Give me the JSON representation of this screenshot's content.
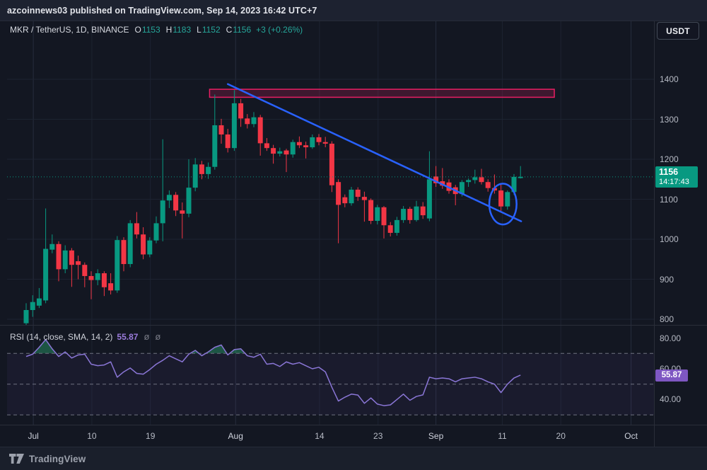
{
  "header": {
    "title": "azcoinnews03 published on TradingView.com, Sep 14, 2023 16:42 UTC+7"
  },
  "toolbar": {
    "currency_label": "USDT"
  },
  "symbol_legend": {
    "symbol": "MKR / TetherUS, 1D, BINANCE",
    "o_label": "O",
    "o": "1153",
    "h_label": "H",
    "h": "1183",
    "l_label": "L",
    "l": "1152",
    "c_label": "C",
    "c": "1156",
    "change": "+3 (+0.26%)"
  },
  "rsi_legend": {
    "title": "RSI",
    "params": "(14, close, SMA, 14, 2)",
    "value": "55.87",
    "icon1": "ø",
    "icon2": "ø"
  },
  "price_badge": {
    "price": "1156",
    "countdown": "14:17:43"
  },
  "rsi_badge": {
    "value": "55.87"
  },
  "footer": {
    "brand": "TradingView"
  },
  "colors": {
    "background": "#131722",
    "topstrip": "#1d2230",
    "up": "#089981",
    "down": "#f23645",
    "legend_value": "#26a69a",
    "rsi_line": "#8a76d6",
    "rsi_label": "#7e57c2",
    "trendline": "#2962ff",
    "resistance_stroke": "#e91e63",
    "price_line": "#089981",
    "grid": "#1d2331",
    "axis_text": "#b6bac4"
  },
  "chart_data": {
    "type": "candlestick+rsi",
    "title": "MKR / TetherUS, 1D, BINANCE",
    "price_axis_ticks": [
      1400,
      1300,
      1200,
      1100,
      1000,
      900,
      800
    ],
    "time_axis_ticks": [
      {
        "label": "Jul",
        "idx": 1.1,
        "major": true
      },
      {
        "label": "10",
        "idx": 10.1,
        "major": false
      },
      {
        "label": "19",
        "idx": 19.1,
        "major": false
      },
      {
        "label": "Aug",
        "idx": 32.2,
        "major": true
      },
      {
        "label": "14",
        "idx": 45.1,
        "major": false
      },
      {
        "label": "23",
        "idx": 54.1,
        "major": false
      },
      {
        "label": "Sep",
        "idx": 63.0,
        "major": true
      },
      {
        "label": "11",
        "idx": 73.2,
        "major": false
      },
      {
        "label": "20",
        "idx": 82.2,
        "major": false
      },
      {
        "label": "Oct",
        "idx": 93.0,
        "major": true
      }
    ],
    "last": {
      "open": 1153,
      "high": 1183,
      "low": 1152,
      "close": 1156,
      "change": "+3 (+0.26%)"
    },
    "candles_ohlc": [
      [
        790,
        840,
        785,
        823
      ],
      [
        823,
        860,
        806,
        843
      ],
      [
        834,
        878,
        828,
        852
      ],
      [
        847,
        1077,
        840,
        976
      ],
      [
        974,
        1012,
        965,
        988
      ],
      [
        988,
        995,
        895,
        925
      ],
      [
        925,
        985,
        915,
        972
      ],
      [
        972,
        978,
        881,
        936
      ],
      [
        945,
        959,
        900,
        936
      ],
      [
        936,
        942,
        880,
        908
      ],
      [
        908,
        920,
        850,
        898
      ],
      [
        898,
        925,
        885,
        915
      ],
      [
        915,
        920,
        858,
        880
      ],
      [
        890,
        915,
        862,
        872
      ],
      [
        872,
        1008,
        866,
        998
      ],
      [
        998,
        1005,
        920,
        938
      ],
      [
        938,
        1048,
        930,
        1040
      ],
      [
        1040,
        1068,
        1002,
        1012
      ],
      [
        1012,
        1030,
        950,
        962
      ],
      [
        962,
        1005,
        955,
        997
      ],
      [
        997,
        1057,
        990,
        1040
      ],
      [
        1040,
        1250,
        995,
        1097
      ],
      [
        1097,
        1122,
        1078,
        1111
      ],
      [
        1111,
        1118,
        1058,
        1072
      ],
      [
        1072,
        1092,
        1002,
        1064
      ],
      [
        1064,
        1200,
        1055,
        1129
      ],
      [
        1129,
        1203,
        1120,
        1187
      ],
      [
        1187,
        1196,
        1150,
        1163
      ],
      [
        1163,
        1192,
        1151,
        1181
      ],
      [
        1181,
        1362,
        1174,
        1285
      ],
      [
        1285,
        1301,
        1239,
        1262
      ],
      [
        1262,
        1276,
        1217,
        1228
      ],
      [
        1228,
        1373,
        1221,
        1340
      ],
      [
        1340,
        1351,
        1281,
        1302
      ],
      [
        1302,
        1313,
        1277,
        1288
      ],
      [
        1288,
        1318,
        1280,
        1305
      ],
      [
        1305,
        1311,
        1209,
        1240
      ],
      [
        1240,
        1253,
        1221,
        1228
      ],
      [
        1228,
        1236,
        1189,
        1214
      ],
      [
        1214,
        1229,
        1207,
        1220
      ],
      [
        1222,
        1226,
        1168,
        1212
      ],
      [
        1212,
        1249,
        1204,
        1243
      ],
      [
        1243,
        1257,
        1228,
        1235
      ],
      [
        1235,
        1244,
        1202,
        1230
      ],
      [
        1230,
        1262,
        1226,
        1255
      ],
      [
        1255,
        1263,
        1235,
        1243
      ],
      [
        1243,
        1256,
        1230,
        1239
      ],
      [
        1239,
        1245,
        1118,
        1135
      ],
      [
        1143,
        1150,
        990,
        1086
      ],
      [
        1105,
        1112,
        1080,
        1090
      ],
      [
        1090,
        1131,
        1084,
        1124
      ],
      [
        1124,
        1130,
        1096,
        1106
      ],
      [
        1106,
        1119,
        1044,
        1098
      ],
      [
        1098,
        1102,
        1038,
        1046
      ],
      [
        1046,
        1086,
        1037,
        1080
      ],
      [
        1080,
        1083,
        1002,
        1035
      ],
      [
        1035,
        1043,
        1007,
        1016
      ],
      [
        1016,
        1056,
        1009,
        1048
      ],
      [
        1048,
        1083,
        1041,
        1076
      ],
      [
        1076,
        1081,
        1039,
        1048
      ],
      [
        1048,
        1096,
        1044,
        1082
      ],
      [
        1082,
        1093,
        1051,
        1060
      ],
      [
        1052,
        1220,
        1045,
        1150
      ],
      [
        1157,
        1183,
        1131,
        1140
      ],
      [
        1145,
        1178,
        1126,
        1134
      ],
      [
        1142,
        1150,
        1114,
        1121
      ],
      [
        1130,
        1136,
        1085,
        1113
      ],
      [
        1113,
        1148,
        1107,
        1143
      ],
      [
        1143,
        1152,
        1131,
        1148
      ],
      [
        1148,
        1174,
        1139,
        1155
      ],
      [
        1155,
        1176,
        1137,
        1143
      ],
      [
        1143,
        1150,
        1119,
        1128
      ],
      [
        1128,
        1162,
        1114,
        1122
      ],
      [
        1122,
        1137,
        1068,
        1082
      ],
      [
        1082,
        1122,
        1074,
        1118
      ],
      [
        1118,
        1163,
        1111,
        1156
      ],
      [
        1153,
        1183,
        1152,
        1156
      ]
    ],
    "rsi": {
      "settings": "14, close, SMA, 14, 2",
      "current": 55.87,
      "bands": [
        70,
        50,
        30
      ],
      "axis_ticks": [
        {
          "label": "80.00",
          "value": 80
        },
        {
          "label": "60.00",
          "value": 60
        },
        {
          "label": "40.00",
          "value": 40
        }
      ],
      "values": [
        68,
        69.5,
        74,
        79,
        73,
        68,
        71,
        67,
        69,
        69.5,
        63,
        62,
        62.5,
        64.5,
        54.5,
        58,
        60.5,
        57,
        56.5,
        59.5,
        63,
        65.5,
        68.5,
        66.5,
        64.5,
        69.5,
        72,
        68.5,
        71,
        74,
        75.5,
        69,
        72.5,
        73,
        68.5,
        67.5,
        69.5,
        63,
        63.5,
        61.5,
        64.5,
        63,
        64,
        62,
        60,
        61,
        58,
        48,
        39,
        41.5,
        43.5,
        42.9,
        37.5,
        41,
        37,
        36,
        36.5,
        40,
        43.5,
        39.5,
        42,
        43,
        54.5,
        53.5,
        54,
        53.5,
        51.5,
        53.5,
        54,
        54.5,
        53.5,
        51.5,
        50,
        44.5,
        50,
        54,
        55.87
      ]
    },
    "annotations": {
      "resistance_box": {
        "idx_start": 28.2,
        "idx_end": 81.2,
        "price_top": 1375,
        "price_bottom": 1355
      },
      "trendline": {
        "idx_start": 31,
        "price_start": 1388,
        "idx_end": 76.1,
        "price_end": 1045
      },
      "ellipse": {
        "idx": 73.3,
        "price": 1088,
        "rx_idx": 2.1,
        "ry_price": 51
      },
      "current_price_line": 1156
    }
  }
}
